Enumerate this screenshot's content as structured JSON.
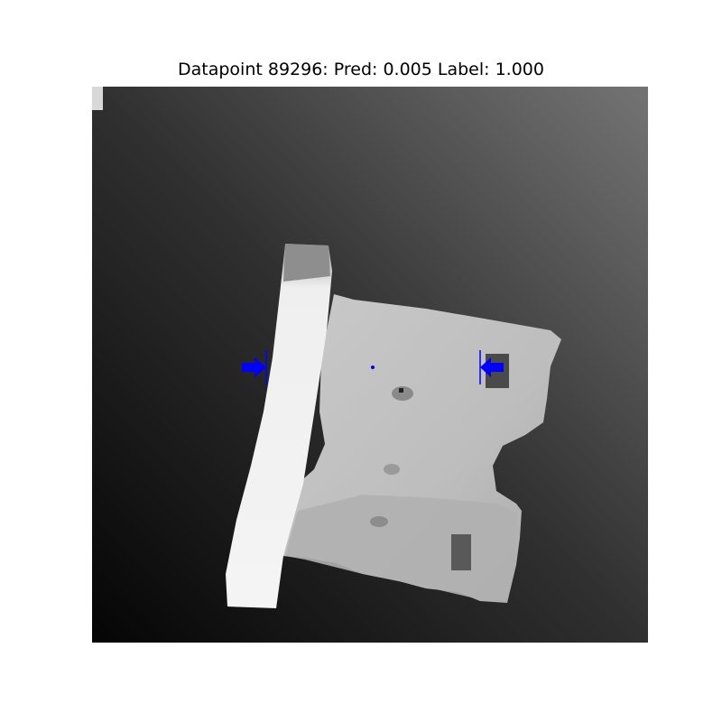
{
  "figure": {
    "title": "Datapoint 89296: Pred: 0.005 Label: 1.000"
  },
  "colors": {
    "grasp_marker": "#0000ff",
    "background_dark": "#0a0a0a",
    "background_light": "#6e6e6e",
    "object_face": "#bcbcbc",
    "object_edge": "#f2f2f2"
  },
  "image": {
    "kind": "grayscale depth image",
    "content": "depth-image-of-bracket-part",
    "annotations": [
      "grasp-arrow-left",
      "grasp-arrow-right",
      "grasp-center-point"
    ]
  }
}
